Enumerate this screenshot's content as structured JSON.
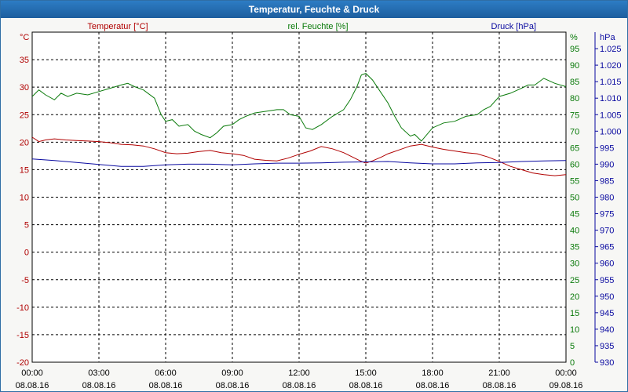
{
  "title": "Temperatur, Feuchte & Druck",
  "colors": {
    "temperature": "#b00000",
    "humidity": "#0a7a0a",
    "pressure": "#0a0aa0",
    "grid": "#000000",
    "titlebar": "#1f66aa"
  },
  "chart_data": {
    "type": "line",
    "title": "Temperatur, Feuchte & Druck",
    "grid": true,
    "x_ticks": [
      {
        "time": "00:00",
        "date": "08.08.16"
      },
      {
        "time": "03:00",
        "date": "08.08.16"
      },
      {
        "time": "06:00",
        "date": "08.08.16"
      },
      {
        "time": "09:00",
        "date": "08.08.16"
      },
      {
        "time": "12:00",
        "date": "08.08.16"
      },
      {
        "time": "15:00",
        "date": "08.08.16"
      },
      {
        "time": "18:00",
        "date": "08.08.16"
      },
      {
        "time": "21:00",
        "date": "08.08.16"
      },
      {
        "time": "00:00",
        "date": "09.08.16"
      }
    ],
    "x_range_hours": [
      0,
      24
    ],
    "axes": {
      "temperature": {
        "label": "Temperatur [°C]",
        "unit": "°C",
        "ylim": [
          -20,
          40
        ],
        "ticks": [
          "35",
          "30",
          "25",
          "20",
          "15",
          "10",
          "5",
          "0",
          "-5",
          "-10",
          "-15",
          "-20"
        ]
      },
      "humidity": {
        "label": "rel. Feuchte [%]",
        "unit": "%",
        "ylim": [
          0,
          100
        ],
        "ticks": [
          "95",
          "90",
          "85",
          "80",
          "75",
          "70",
          "65",
          "60",
          "55",
          "50",
          "45",
          "40",
          "35",
          "30",
          "25",
          "20",
          "15",
          "10",
          "5",
          "0"
        ]
      },
      "pressure": {
        "label": "Druck [hPa]",
        "unit": "hPa",
        "ylim": [
          930,
          1030
        ],
        "ticks": [
          "1.025",
          "1.020",
          "1.015",
          "1.010",
          "1.005",
          "1.000",
          "995",
          "990",
          "985",
          "980",
          "975",
          "970",
          "965",
          "960",
          "955",
          "950",
          "945",
          "940",
          "935",
          "930"
        ]
      }
    },
    "series": [
      {
        "name": "Temperatur [°C]",
        "axis": "temperature",
        "x": [
          0,
          0.3,
          0.6,
          1,
          1.5,
          2,
          2.5,
          3,
          3.5,
          4,
          4.5,
          5,
          5.5,
          6,
          6.5,
          7,
          7.5,
          8,
          8.5,
          9,
          9.5,
          10,
          10.5,
          11,
          11.5,
          12,
          12.5,
          13,
          13.5,
          14,
          14.5,
          14.8,
          15,
          15.3,
          15.7,
          16,
          16.5,
          17,
          17.5,
          18,
          18.5,
          19,
          19.5,
          20,
          20.5,
          21,
          21.5,
          22,
          22.5,
          23,
          23.5,
          24
        ],
        "values": [
          20.9,
          20.1,
          20.4,
          20.6,
          20.4,
          20.3,
          20.2,
          20.1,
          19.9,
          19.6,
          19.5,
          19.3,
          18.8,
          18.1,
          17.9,
          18.0,
          18.3,
          18.5,
          18.1,
          17.9,
          17.6,
          16.9,
          16.7,
          16.6,
          17.1,
          17.8,
          18.4,
          19.2,
          18.8,
          18.1,
          17.1,
          16.5,
          16.2,
          16.6,
          17.3,
          17.9,
          18.6,
          19.3,
          19.6,
          19.1,
          18.7,
          18.4,
          18.1,
          17.9,
          17.3,
          16.5,
          15.6,
          15.0,
          14.4,
          14.1,
          13.9,
          14.1
        ]
      },
      {
        "name": "rel. Feuchte [%]",
        "axis": "humidity",
        "x": [
          0,
          0.3,
          0.6,
          1,
          1.3,
          1.6,
          2,
          2.5,
          3,
          3.5,
          4,
          4.3,
          4.6,
          5,
          5.5,
          5.8,
          6,
          6.3,
          6.6,
          7,
          7.3,
          7.6,
          8,
          8.3,
          8.6,
          9,
          9.3,
          9.6,
          10,
          10.5,
          11,
          11.3,
          11.6,
          12,
          12.3,
          12.6,
          13,
          13.5,
          14,
          14.3,
          14.6,
          14.8,
          15,
          15.3,
          15.6,
          16,
          16.3,
          16.6,
          17,
          17.2,
          17.5,
          18,
          18.5,
          19,
          19.5,
          20,
          20.3,
          20.6,
          21,
          21.5,
          22,
          22.3,
          22.6,
          23,
          23.5,
          24
        ],
        "values": [
          80.5,
          82.5,
          81.0,
          79.5,
          81.5,
          80.5,
          81.5,
          81.0,
          82.0,
          83.0,
          84.0,
          84.5,
          83.5,
          82.5,
          80.0,
          75.0,
          73.0,
          73.5,
          71.5,
          72.0,
          70.0,
          69.0,
          68.0,
          69.5,
          71.5,
          72.0,
          73.5,
          74.5,
          75.5,
          76.0,
          76.5,
          76.5,
          75.0,
          74.5,
          71.0,
          70.5,
          72.0,
          74.5,
          76.5,
          79.5,
          83.5,
          87.0,
          87.5,
          85.5,
          82.5,
          78.5,
          74.5,
          71.0,
          68.5,
          69.0,
          67.0,
          71.0,
          72.5,
          73.0,
          74.5,
          75.0,
          76.5,
          77.5,
          80.5,
          81.5,
          83.0,
          84.0,
          84.0,
          86.0,
          84.5,
          83.5
        ]
      },
      {
        "name": "Druck [hPa]",
        "axis": "pressure",
        "x": [
          0,
          1,
          2,
          3,
          4,
          5,
          6,
          7,
          8,
          9,
          10,
          11,
          12,
          13,
          14,
          15,
          16,
          17,
          18,
          19,
          20,
          21,
          22,
          23,
          24
        ],
        "values": [
          991.6,
          991.1,
          990.5,
          989.9,
          989.3,
          989.3,
          989.8,
          990.0,
          990.0,
          989.8,
          990.1,
          990.3,
          990.3,
          990.4,
          990.6,
          990.7,
          990.8,
          990.4,
          990.1,
          990.1,
          990.4,
          990.5,
          990.8,
          991.0,
          991.1
        ]
      }
    ]
  }
}
